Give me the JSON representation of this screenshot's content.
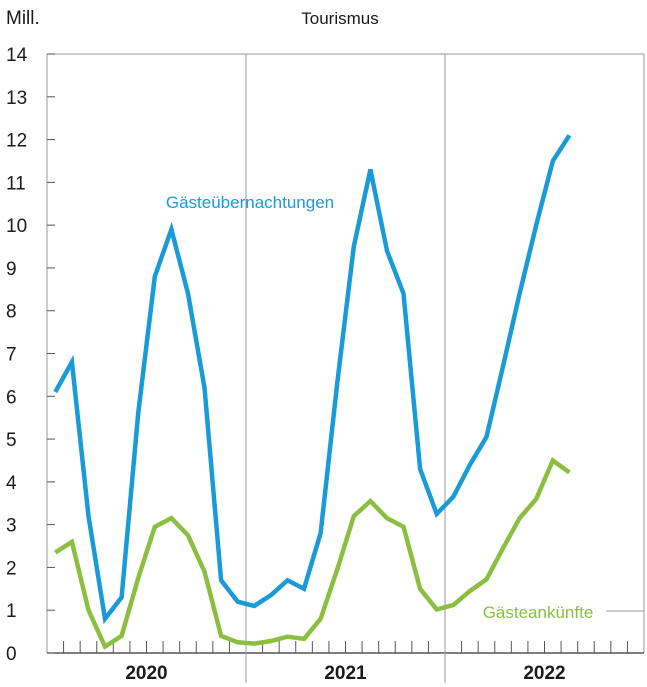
{
  "chart_data": {
    "type": "line",
    "title": "Tourismus",
    "ylabel": "Mill.",
    "xlabel": "",
    "ylim": [
      0,
      14
    ],
    "yticks": [
      0,
      1,
      2,
      3,
      4,
      5,
      6,
      7,
      8,
      9,
      10,
      11,
      12,
      13,
      14
    ],
    "x_months_total": 36,
    "year_labels": [
      "2020",
      "2021",
      "2022"
    ],
    "grid": "vertical year separators only",
    "series": [
      {
        "name": "Gästeübernachtungen",
        "color": "#1a9bd7",
        "values": [
          6.1,
          6.8,
          3.2,
          0.8,
          1.3,
          5.6,
          8.8,
          9.9,
          8.4,
          6.2,
          1.7,
          1.2,
          1.1,
          1.35,
          1.7,
          1.5,
          2.8,
          6.3,
          9.5,
          11.3,
          9.4,
          8.4,
          4.3,
          3.25,
          3.65,
          4.4,
          5.05,
          6.7,
          8.4,
          10.0,
          11.5,
          12.1
        ]
      },
      {
        "name": "Gästeankünfte",
        "color": "#8cbf3f",
        "values": [
          2.35,
          2.6,
          1.0,
          0.15,
          0.4,
          1.75,
          2.95,
          3.15,
          2.75,
          1.9,
          0.4,
          0.25,
          0.22,
          0.28,
          0.38,
          0.33,
          0.8,
          1.95,
          3.2,
          3.55,
          3.15,
          2.95,
          1.5,
          1.02,
          1.12,
          1.45,
          1.72,
          2.45,
          3.15,
          3.6,
          4.5,
          4.22
        ]
      }
    ]
  }
}
